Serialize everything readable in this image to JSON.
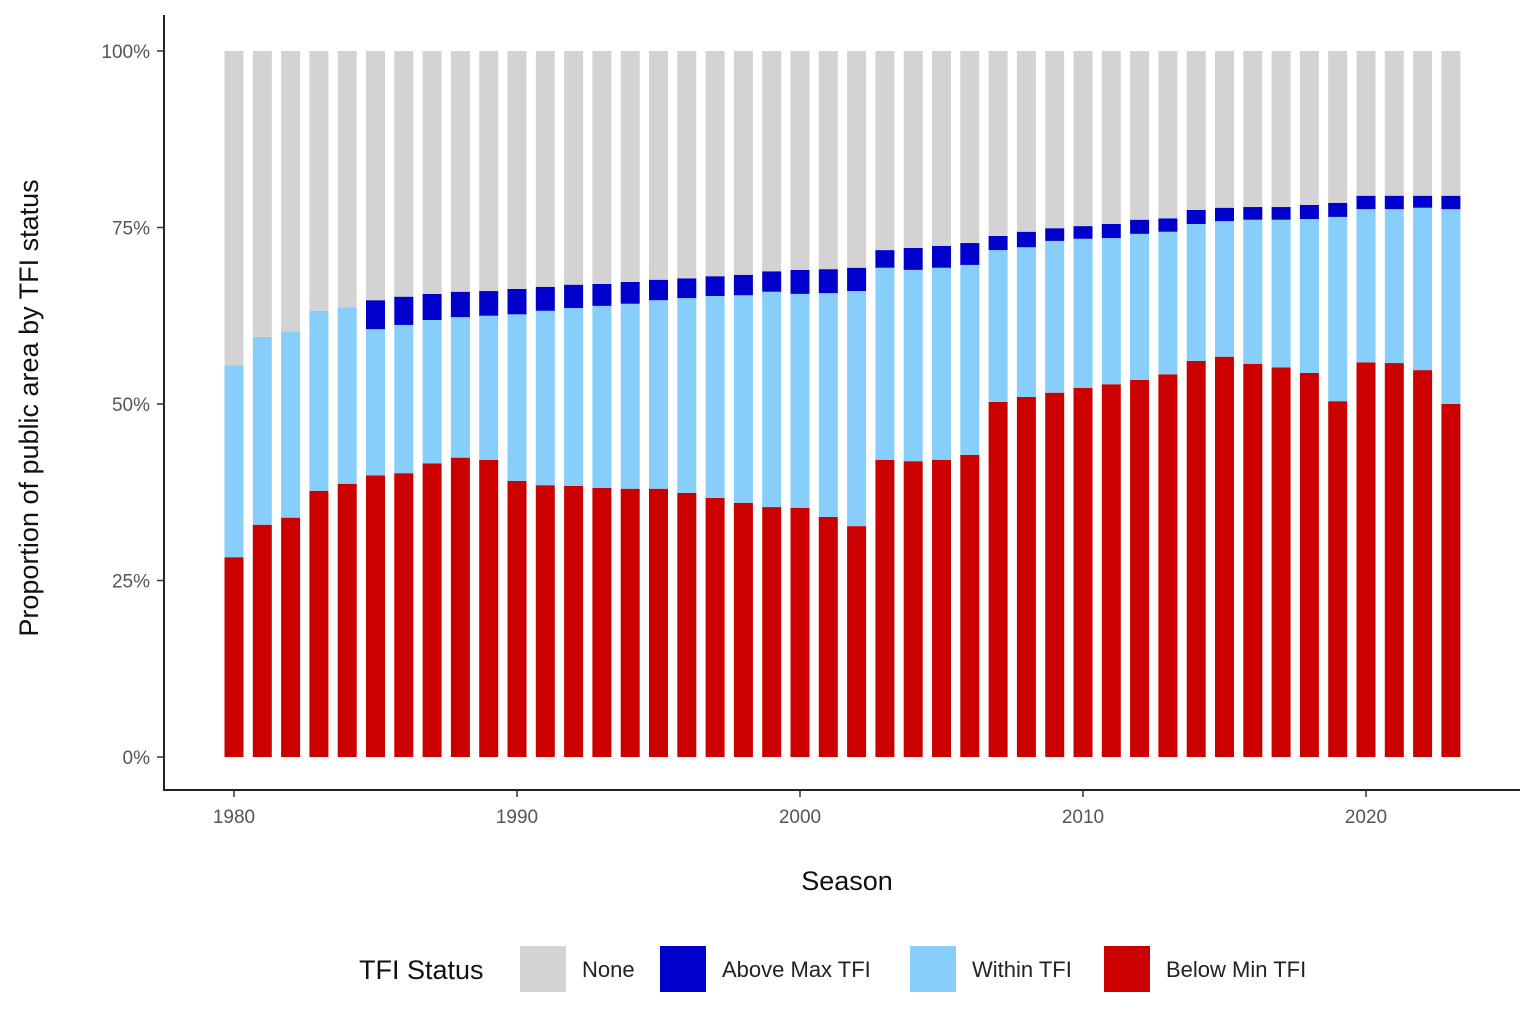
{
  "chart_data": {
    "type": "bar",
    "stacked": true,
    "xlabel": "Season",
    "ylabel": "Proportion of public area by TFI status",
    "ylim": [
      0,
      100
    ],
    "y_ticks": [
      "0%",
      "25%",
      "50%",
      "75%",
      "100%"
    ],
    "y_tick_values": [
      0,
      25,
      50,
      75,
      100
    ],
    "x_ticks": [
      "1980",
      "1990",
      "2000",
      "2010",
      "2020"
    ],
    "x_tick_values": [
      1980,
      1990,
      2000,
      2010,
      2020
    ],
    "grid": false,
    "legend": {
      "title": "TFI Status",
      "placement": "bottom"
    },
    "x": [
      1980,
      1981,
      1982,
      1983,
      1984,
      1985,
      1986,
      1987,
      1988,
      1989,
      1990,
      1991,
      1992,
      1993,
      1994,
      1995,
      1996,
      1997,
      1998,
      1999,
      2000,
      2001,
      2002,
      2003,
      2004,
      2005,
      2006,
      2007,
      2008,
      2009,
      2010,
      2011,
      2012,
      2013,
      2014,
      2015,
      2016,
      2017,
      2018,
      2019,
      2020,
      2021,
      2022,
      2023
    ],
    "series": [
      {
        "name": "Below Min TFI",
        "color": "#cd0000",
        "values": [
          28.3,
          32.9,
          33.9,
          37.7,
          38.7,
          39.9,
          40.2,
          41.6,
          42.4,
          42.1,
          39.1,
          38.5,
          38.4,
          38.1,
          38.0,
          38.0,
          37.4,
          36.7,
          36.0,
          35.4,
          35.3,
          34.0,
          32.7,
          42.1,
          41.9,
          42.1,
          42.8,
          50.3,
          51.0,
          51.6,
          52.3,
          52.8,
          53.4,
          54.2,
          56.1,
          56.7,
          55.7,
          55.2,
          54.4,
          50.4,
          55.9,
          55.8,
          54.8,
          50.0
        ]
      },
      {
        "name": "Within TFI",
        "color": "#87cefa",
        "values": [
          27.2,
          26.6,
          26.4,
          25.5,
          25.0,
          20.7,
          21.0,
          20.3,
          19.9,
          20.4,
          23.6,
          24.7,
          25.2,
          25.8,
          26.2,
          26.7,
          27.6,
          28.6,
          29.4,
          30.5,
          30.3,
          31.7,
          33.3,
          27.2,
          27.1,
          27.2,
          26.9,
          21.5,
          21.2,
          21.5,
          21.1,
          20.7,
          20.7,
          20.2,
          19.4,
          19.2,
          20.4,
          20.9,
          21.8,
          26.1,
          21.7,
          21.8,
          23.0,
          27.6
        ]
      },
      {
        "name": "Above Max TFI",
        "color": "#0000cd",
        "values": [
          0,
          0,
          0,
          0,
          0,
          4.1,
          4.0,
          3.7,
          3.6,
          3.5,
          3.6,
          3.4,
          3.3,
          3.1,
          3.1,
          2.9,
          2.8,
          2.8,
          2.9,
          2.9,
          3.4,
          3.4,
          3.3,
          2.5,
          3.1,
          3.1,
          3.1,
          2.0,
          2.2,
          1.8,
          1.8,
          2.0,
          2.0,
          1.9,
          2.0,
          1.9,
          1.8,
          1.8,
          2.0,
          2.0,
          1.9,
          1.9,
          1.7,
          1.9
        ]
      },
      {
        "name": "None",
        "color": "#d3d3d3",
        "values": [
          44.5,
          40.5,
          39.7,
          36.8,
          36.3,
          35.3,
          34.8,
          34.4,
          34.1,
          34.0,
          33.7,
          33.4,
          33.1,
          33.0,
          32.7,
          32.4,
          32.2,
          31.9,
          31.7,
          31.2,
          31.0,
          30.9,
          30.7,
          28.2,
          27.9,
          27.6,
          27.2,
          26.2,
          25.6,
          25.1,
          24.8,
          24.5,
          23.9,
          23.7,
          22.5,
          22.2,
          22.1,
          22.1,
          21.8,
          21.5,
          20.5,
          20.5,
          20.5,
          20.5
        ]
      }
    ],
    "legend_order": [
      "None",
      "Above Max TFI",
      "Within TFI",
      "Below Min TFI"
    ]
  }
}
